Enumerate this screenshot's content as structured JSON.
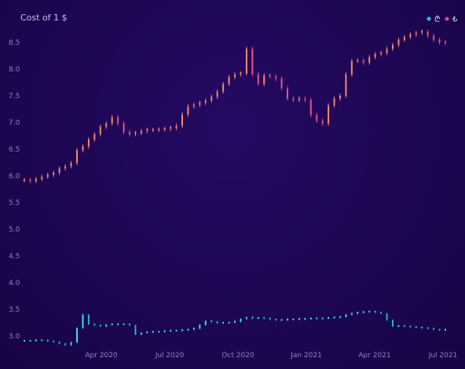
{
  "chart_data": {
    "type": "candlestick",
    "title": "Cost of 1 $",
    "xlabel": "",
    "ylabel": "",
    "ylim": [
      2.85,
      8.65
    ],
    "y_ticks": [
      3.0,
      3.5,
      4.0,
      4.5,
      5.0,
      5.5,
      6.0,
      6.5,
      7.0,
      7.5,
      8.0,
      8.5
    ],
    "x_ticks": [
      "Apr 2020",
      "Jul 2020",
      "Oct 2020",
      "Jan 2021",
      "Apr 2021",
      "Jul 2021"
    ],
    "x_range_months": [
      "Jan 2020",
      "Aug 2021"
    ],
    "legend_position": "top-right",
    "grid": false,
    "series": [
      {
        "name": "₾",
        "color": "#1fc3e6",
        "values": [
          2.91,
          2.91,
          2.92,
          2.92,
          2.9,
          2.89,
          2.86,
          2.83,
          2.88,
          3.15,
          3.4,
          3.22,
          3.2,
          3.18,
          3.21,
          3.22,
          3.22,
          3.22,
          3.2,
          3.03,
          3.06,
          3.07,
          3.08,
          3.08,
          3.09,
          3.1,
          3.1,
          3.11,
          3.12,
          3.14,
          3.21,
          3.28,
          3.27,
          3.24,
          3.25,
          3.25,
          3.27,
          3.32,
          3.35,
          3.33,
          3.34,
          3.33,
          3.31,
          3.3,
          3.3,
          3.31,
          3.31,
          3.32,
          3.32,
          3.33,
          3.33,
          3.33,
          3.34,
          3.35,
          3.36,
          3.4,
          3.42,
          3.44,
          3.45,
          3.46,
          3.44,
          3.42,
          3.3,
          3.18,
          3.19,
          3.18,
          3.17,
          3.16,
          3.15,
          3.14,
          3.12,
          3.11,
          3.12
        ]
      },
      {
        "name": "₺",
        "color": "#ee6f6f",
        "values": [
          5.92,
          5.9,
          5.94,
          5.98,
          6.02,
          6.06,
          6.14,
          6.18,
          6.24,
          6.48,
          6.55,
          6.68,
          6.78,
          6.92,
          6.98,
          7.1,
          6.98,
          6.82,
          6.78,
          6.8,
          6.84,
          6.86,
          6.86,
          6.87,
          6.88,
          6.9,
          6.94,
          7.15,
          7.3,
          7.33,
          7.37,
          7.41,
          7.48,
          7.58,
          7.72,
          7.85,
          7.9,
          7.92,
          8.38,
          7.9,
          7.72,
          7.88,
          7.86,
          7.82,
          7.64,
          7.45,
          7.42,
          7.45,
          7.42,
          7.14,
          7.03,
          6.98,
          7.32,
          7.45,
          7.5,
          7.9,
          8.15,
          8.16,
          8.12,
          8.22,
          8.28,
          8.3,
          8.38,
          8.45,
          8.55,
          8.6,
          8.65,
          8.68,
          8.7,
          8.62,
          8.55,
          8.5,
          8.48
        ]
      }
    ]
  }
}
